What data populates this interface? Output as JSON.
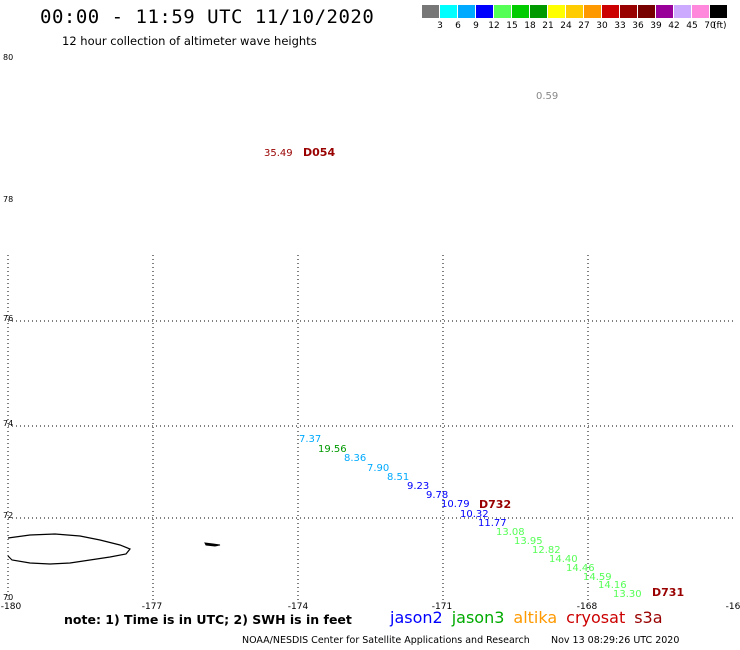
{
  "header": {
    "title": "00:00 - 11:59 UTC 11/10/2020",
    "subtitle": "12 hour collection of altimeter wave heights"
  },
  "legend": {
    "unit": "(ft)",
    "colors": [
      "#777777",
      "#00ffff",
      "#00aaff",
      "#0000ff",
      "#55ff55",
      "#00cc00",
      "#009900",
      "#ffff00",
      "#ffcc00",
      "#ff9900",
      "#cc0000",
      "#990000",
      "#770000",
      "#990099",
      "#ccaaff",
      "#ff88dd",
      "#000000"
    ],
    "labels": [
      "3",
      "6",
      "9",
      "12",
      "15",
      "18",
      "21",
      "24",
      "27",
      "30",
      "33",
      "36",
      "39",
      "42",
      "45",
      "70"
    ]
  },
  "axes": {
    "lon_labels": [
      "-180",
      "-177",
      "-174",
      "-171",
      "-168",
      "-16"
    ],
    "lat_labels": [
      "80",
      "78",
      "76",
      "74",
      "72",
      "70"
    ]
  },
  "observations": [
    {
      "text": "0.59",
      "color": "#888888"
    },
    {
      "text": "35.49",
      "color": "#990000"
    },
    {
      "text": "D054",
      "color": "#990000"
    },
    {
      "text": "7.37",
      "color": "#00aaff"
    },
    {
      "text": "19.56",
      "color": "#009900"
    },
    {
      "text": "8.36",
      "color": "#00aaff"
    },
    {
      "text": "7.90",
      "color": "#00aaff"
    },
    {
      "text": "8.51",
      "color": "#00aaff"
    },
    {
      "text": "9.23",
      "color": "#0000ff"
    },
    {
      "text": "9.78",
      "color": "#0000ff"
    },
    {
      "text": "10.79",
      "color": "#0000ff"
    },
    {
      "text": "D732",
      "color": "#990000"
    },
    {
      "text": "10.32",
      "color": "#0000ff"
    },
    {
      "text": "11.77",
      "color": "#0000ff"
    },
    {
      "text": "13.08",
      "color": "#55ff55"
    },
    {
      "text": "13.95",
      "color": "#55ff55"
    },
    {
      "text": "12.82",
      "color": "#55ff55"
    },
    {
      "text": "14.40",
      "color": "#55ff55"
    },
    {
      "text": "14.46",
      "color": "#55ff55"
    },
    {
      "text": "14.59",
      "color": "#55ff55"
    },
    {
      "text": "14.16",
      "color": "#55ff55"
    },
    {
      "text": "13.30",
      "color": "#55ff55"
    },
    {
      "text": "D731",
      "color": "#990000"
    }
  ],
  "note": "note: 1) Time is in UTC; 2) SWH is in feet",
  "satellites": [
    {
      "name": "jason2",
      "color": "#0000ff"
    },
    {
      "name": "jason3",
      "color": "#00aa00"
    },
    {
      "name": "altika",
      "color": "#ff9900"
    },
    {
      "name": "cryosat",
      "color": "#cc0000"
    },
    {
      "name": "s3a",
      "color": "#990000"
    }
  ],
  "footer": {
    "credit": "NOAA/NESDIS Center for Satellite Applications and Research",
    "timestamp": "Nov 13 08:29:26 UTC 2020"
  }
}
